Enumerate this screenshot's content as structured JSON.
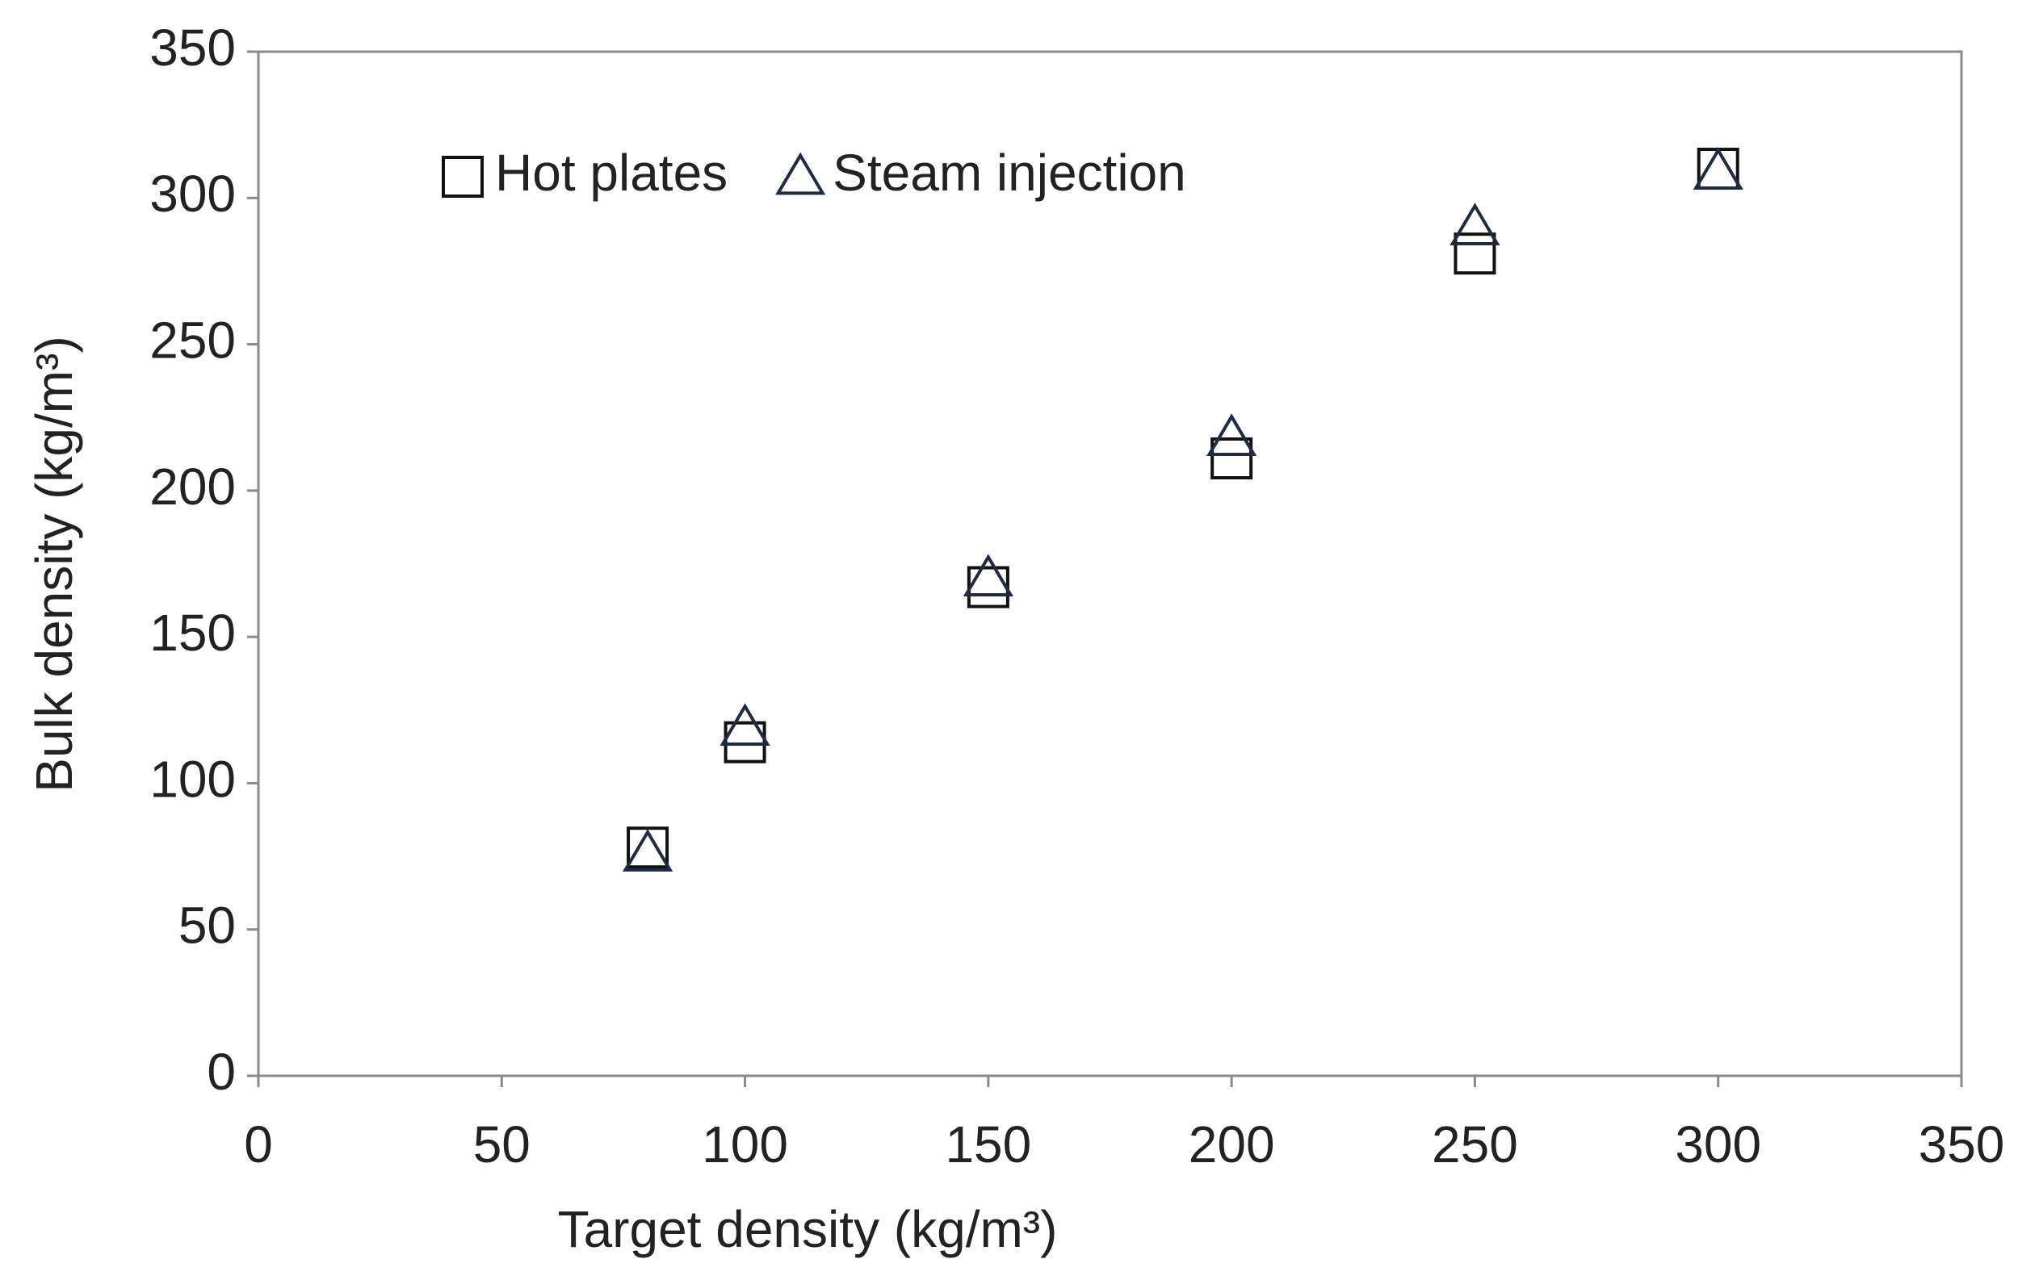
{
  "chart_data": {
    "type": "scatter",
    "x_label": "Target density (kg/m³)",
    "y_label": "Bulk density (kg/m³)",
    "series": [
      {
        "name": "Hot plates",
        "color": "#111111",
        "marker": "square",
        "x": [
          80,
          100,
          150,
          200,
          250,
          300
        ],
        "values": [
          78,
          114,
          167,
          211,
          281,
          310
        ]
      },
      {
        "name": "Steam injection",
        "color": "#1f2a44",
        "marker": "triangle",
        "x": [
          80,
          100,
          150,
          200,
          250,
          300
        ],
        "values": [
          76,
          119,
          170,
          218,
          290,
          309
        ]
      }
    ],
    "xlim": [
      0,
      350
    ],
    "xticks": [
      0,
      50,
      100,
      150,
      200,
      250,
      300,
      350
    ],
    "ylim": [
      0,
      350
    ],
    "yticks": [
      0,
      50,
      100,
      150,
      200,
      250,
      300,
      350
    ],
    "grid": false,
    "legend": "top-left"
  }
}
